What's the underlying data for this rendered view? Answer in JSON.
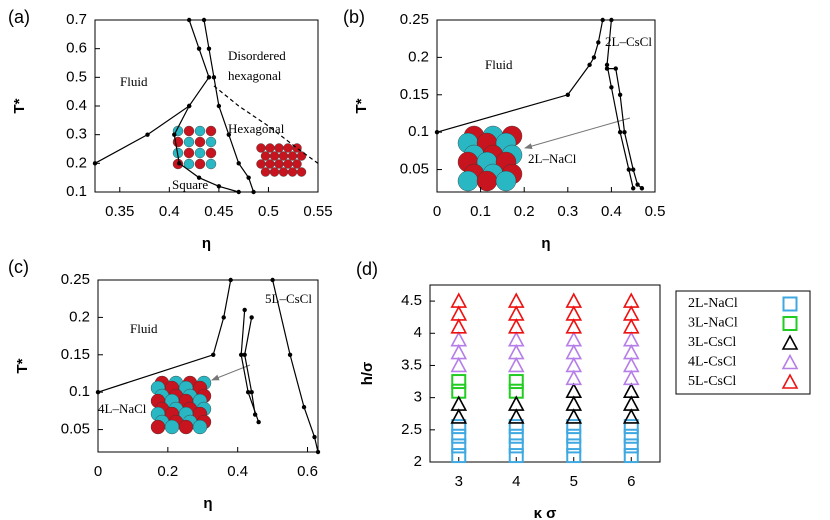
{
  "chart_data": [
    {
      "type": "line",
      "label": "(a)",
      "x_label": "η",
      "y_label": "T*",
      "xlim": [
        0.325,
        0.55
      ],
      "xticks": [
        0.35,
        0.4,
        0.45,
        0.5,
        0.55
      ],
      "ylim": [
        0.1,
        0.7
      ],
      "yticks": [
        0.1,
        0.2,
        0.3,
        0.4,
        0.5,
        0.6,
        0.7
      ],
      "annotations": [
        "Fluid",
        "Disordered",
        "hexagonal",
        "Hexagonal",
        "Square"
      ],
      "series": [
        {
          "color": "#000000",
          "x": [
            0.325,
            0.378,
            0.42,
            0.44,
            0.43,
            0.42
          ],
          "values": [
            0.2,
            0.3,
            0.4,
            0.5,
            0.6,
            0.7
          ]
        },
        {
          "color": "#000000",
          "x": [
            0.435,
            0.44,
            0.445,
            0.45,
            0.46,
            0.47,
            0.48,
            0.485
          ],
          "values": [
            0.7,
            0.6,
            0.5,
            0.4,
            0.3,
            0.2,
            0.15,
            0.1
          ]
        },
        {
          "color": "#000000",
          "x": [
            0.42,
            0.405,
            0.41,
            0.43,
            0.45,
            0.47
          ],
          "values": [
            0.4,
            0.3,
            0.2,
            0.15,
            0.12,
            0.1
          ]
        },
        {
          "color": "#000000",
          "dashed": true,
          "x": [
            0.445,
            0.47,
            0.5,
            0.53,
            0.55
          ],
          "values": [
            0.47,
            0.4,
            0.33,
            0.25,
            0.2
          ]
        }
      ]
    },
    {
      "type": "line",
      "label": "(b)",
      "x_label": "η",
      "y_label": "T*",
      "xlim": [
        0,
        0.5
      ],
      "xticks": [
        0,
        0.1,
        0.2,
        0.3,
        0.4,
        0.5
      ],
      "ylim": [
        0.02,
        0.25
      ],
      "yticks": [
        0.05,
        0.1,
        0.15,
        0.2,
        0.25
      ],
      "annotations": [
        "Fluid",
        "2L–CsCl",
        "2L–NaCl"
      ],
      "series": [
        {
          "color": "#000000",
          "x": [
            0,
            0.3,
            0.35,
            0.36,
            0.37,
            0.38
          ],
          "values": [
            0.1,
            0.15,
            0.19,
            0.2,
            0.22,
            0.25
          ]
        },
        {
          "color": "#000000",
          "x": [
            0.4,
            0.39,
            0.4,
            0.42,
            0.44,
            0.45
          ],
          "values": [
            0.25,
            0.19,
            0.16,
            0.1,
            0.05,
            0.025
          ]
        },
        {
          "color": "#000000",
          "x": [
            0.39,
            0.41,
            0.42,
            0.43,
            0.45,
            0.46,
            0.47
          ],
          "values": [
            0.185,
            0.185,
            0.15,
            0.1,
            0.05,
            0.03,
            0.025
          ]
        }
      ]
    },
    {
      "type": "line",
      "label": "(c)",
      "x_label": "η",
      "y_label": "T*",
      "xlim": [
        0,
        0.63
      ],
      "xticks": [
        0,
        0.2,
        0.4,
        0.6
      ],
      "ylim": [
        0.02,
        0.25
      ],
      "yticks": [
        0.05,
        0.1,
        0.15,
        0.2,
        0.25
      ],
      "annotations": [
        "Fluid",
        "5L–CsCl",
        "4L–NaCl"
      ],
      "series": [
        {
          "color": "#000000",
          "x": [
            0,
            0.33,
            0.36,
            0.38
          ],
          "values": [
            0.1,
            0.15,
            0.2,
            0.25
          ]
        },
        {
          "color": "#000000",
          "x": [
            0.42,
            0.41,
            0.43,
            0.46
          ],
          "values": [
            0.21,
            0.15,
            0.1,
            0.06
          ]
        },
        {
          "color": "#000000",
          "x": [
            0.44,
            0.42,
            0.44,
            0.45
          ],
          "values": [
            0.2,
            0.15,
            0.1,
            0.07
          ]
        },
        {
          "color": "#000000",
          "x": [
            0.5,
            0.55,
            0.59,
            0.62,
            0.63
          ],
          "values": [
            0.25,
            0.15,
            0.08,
            0.04,
            0.02
          ]
        }
      ]
    },
    {
      "type": "scatter",
      "label": "(d)",
      "x_label": "κ σ",
      "y_label": "h/σ",
      "xlim": [
        2.5,
        6.5
      ],
      "xticks": [
        3,
        4,
        5,
        6
      ],
      "ylim": [
        2,
        4.75
      ],
      "yticks": [
        2,
        2.5,
        3,
        3.5,
        4,
        4.5
      ],
      "series": [
        {
          "name": "2L-NaCl",
          "color": "#3fa8e0",
          "marker": "square",
          "x": [
            3,
            3,
            3,
            3,
            4,
            4,
            4,
            4,
            5,
            5,
            5,
            5,
            6,
            6,
            6,
            6
          ],
          "values": [
            2.1,
            2.25,
            2.4,
            2.55,
            2.1,
            2.25,
            2.4,
            2.55,
            2.1,
            2.25,
            2.4,
            2.55,
            2.1,
            2.25,
            2.4,
            2.55
          ]
        },
        {
          "name": "3L-NaCl",
          "color": "#22cc22",
          "marker": "square",
          "x": [
            3,
            3,
            4,
            4
          ],
          "values": [
            3.1,
            3.25,
            3.1,
            3.25
          ]
        },
        {
          "name": "3L-CsCl",
          "color": "#000000",
          "marker": "triangle",
          "x": [
            3,
            3,
            4,
            4,
            5,
            5,
            5,
            6,
            6,
            6
          ],
          "values": [
            2.7,
            2.9,
            2.7,
            2.9,
            2.7,
            2.9,
            3.1,
            2.7,
            2.9,
            3.1
          ]
        },
        {
          "name": "4L-CsCl",
          "color": "#b57ee8",
          "marker": "triangle",
          "x": [
            3,
            3,
            3,
            4,
            4,
            4,
            5,
            5,
            5,
            5,
            6,
            6,
            6,
            6
          ],
          "values": [
            3.5,
            3.7,
            3.9,
            3.5,
            3.7,
            3.9,
            3.3,
            3.5,
            3.7,
            3.9,
            3.3,
            3.5,
            3.7,
            3.9
          ]
        },
        {
          "name": "5L-CsCl",
          "color": "#ee1111",
          "marker": "triangle",
          "x": [
            3,
            3,
            3,
            4,
            4,
            4,
            5,
            5,
            5,
            6,
            6,
            6
          ],
          "values": [
            4.1,
            4.3,
            4.5,
            4.1,
            4.3,
            4.5,
            4.1,
            4.3,
            4.5,
            4.1,
            4.3,
            4.5
          ]
        }
      ]
    }
  ]
}
